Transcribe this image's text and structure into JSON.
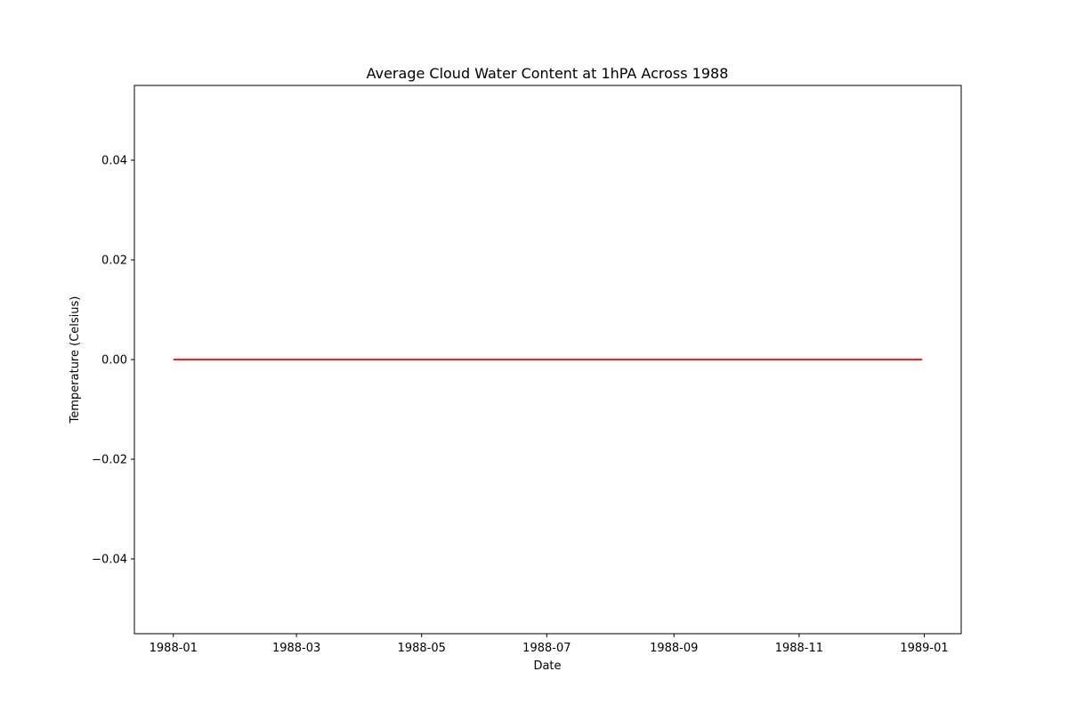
{
  "chart_data": {
    "type": "line",
    "title": "Average Cloud Water Content at 1hPA Across 1988",
    "xlabel": "Date",
    "ylabel": "Temperature (Celsius)",
    "xlim": [
      "1987-12-13",
      "1989-01-19"
    ],
    "ylim": [
      -0.055,
      0.055
    ],
    "x_ticks": [
      "1988-01",
      "1988-03",
      "1988-05",
      "1988-07",
      "1988-09",
      "1988-11",
      "1989-01"
    ],
    "x_tick_dates": [
      "1988-01-01",
      "1988-03-01",
      "1988-05-01",
      "1988-07-01",
      "1988-09-01",
      "1988-11-01",
      "1989-01-01"
    ],
    "y_ticks": [
      0.04,
      0.02,
      0.0,
      -0.02,
      -0.04
    ],
    "y_tick_labels": [
      "0.04",
      "0.02",
      "0.00",
      "−0.02",
      "−0.04"
    ],
    "grid": false,
    "series": [
      {
        "color": "#ff0000",
        "x": [
          "1988-01-01",
          "1988-12-31"
        ],
        "y": [
          0.0,
          0.0
        ]
      }
    ]
  }
}
